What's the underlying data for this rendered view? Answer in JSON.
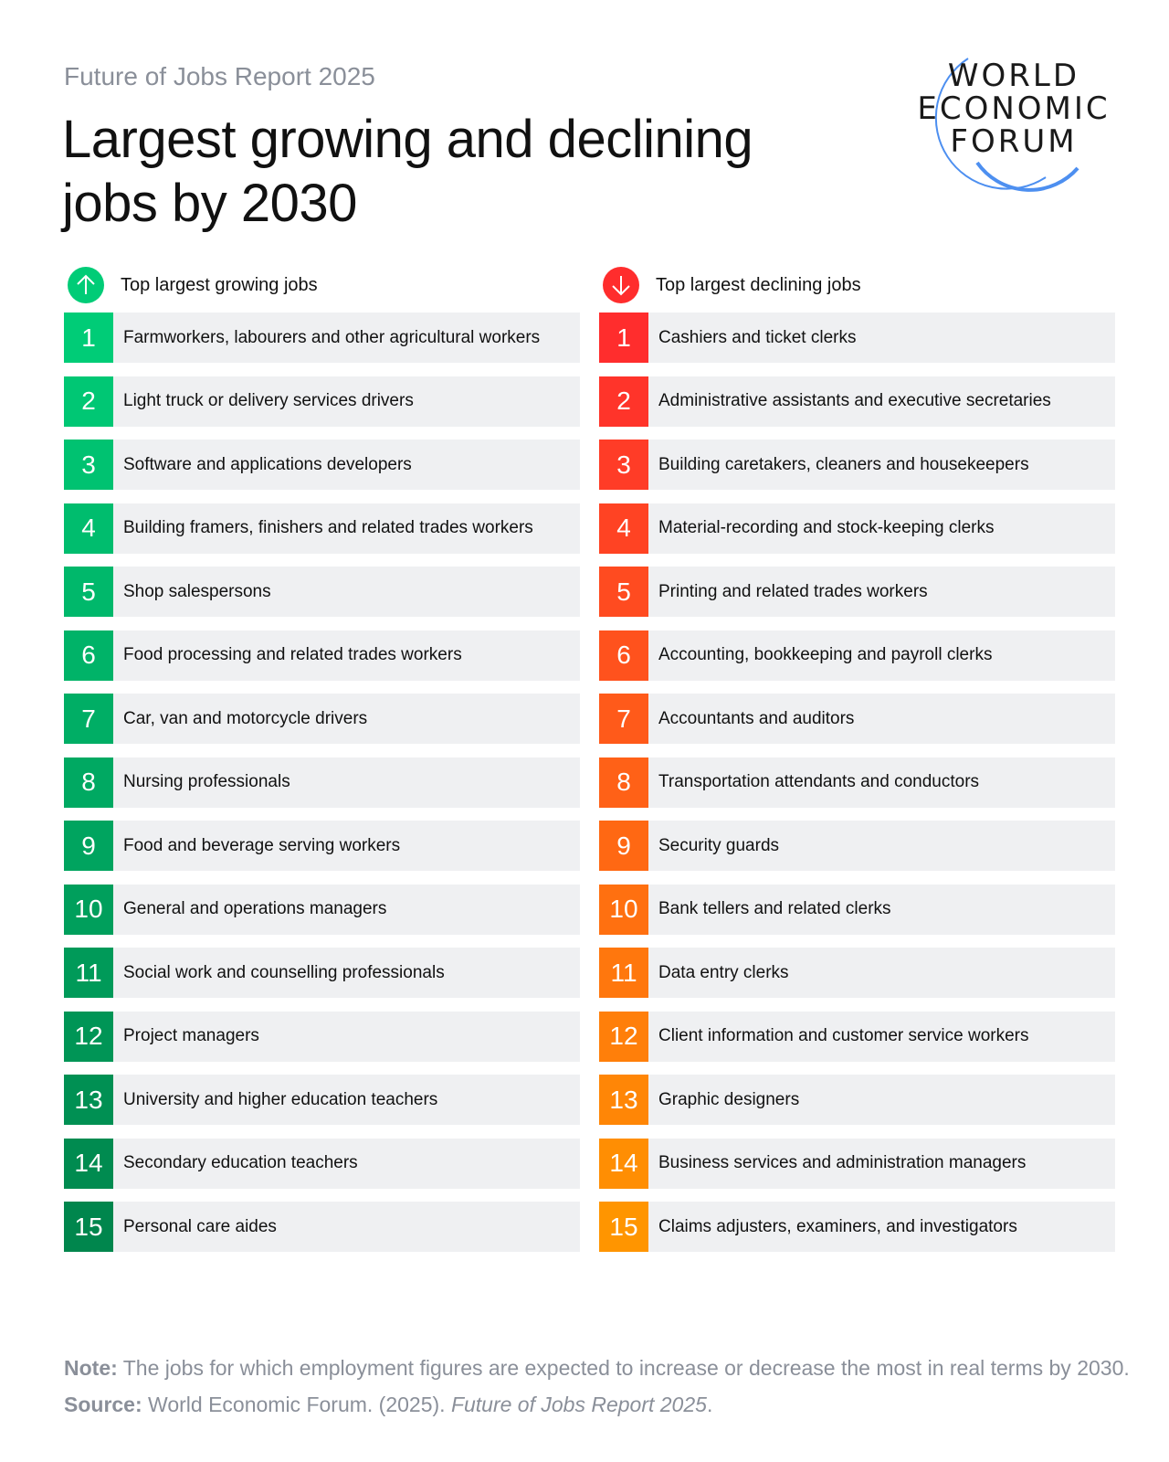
{
  "header": {
    "subtitle": "Future of Jobs Report 2025",
    "title": "Largest growing and declining jobs by 2030",
    "logo_text": "WORLD ECONOMIC FORUM"
  },
  "colors": {
    "growing_start": "#00cc77",
    "growing_end": "#00864d",
    "declining_start": "#ff2d2d",
    "declining_end": "#ff9500",
    "row_bg": "#eff0f2"
  },
  "growing": {
    "heading": "Top largest growing jobs",
    "icon": "arrow-up-icon",
    "items": [
      {
        "rank": "1",
        "label": "Farmworkers, labourers and other agricultural workers"
      },
      {
        "rank": "2",
        "label": "Light truck or delivery services drivers"
      },
      {
        "rank": "3",
        "label": "Software and applications developers"
      },
      {
        "rank": "4",
        "label": "Building framers, finishers and related trades workers"
      },
      {
        "rank": "5",
        "label": "Shop salespersons"
      },
      {
        "rank": "6",
        "label": "Food processing and related trades workers"
      },
      {
        "rank": "7",
        "label": "Car, van and motorcycle drivers"
      },
      {
        "rank": "8",
        "label": "Nursing professionals"
      },
      {
        "rank": "9",
        "label": "Food and beverage serving workers"
      },
      {
        "rank": "10",
        "label": "General and operations managers"
      },
      {
        "rank": "11",
        "label": "Social work and counselling professionals"
      },
      {
        "rank": "12",
        "label": "Project managers"
      },
      {
        "rank": "13",
        "label": "University and higher education teachers"
      },
      {
        "rank": "14",
        "label": "Secondary education teachers"
      },
      {
        "rank": "15",
        "label": "Personal care aides"
      }
    ]
  },
  "declining": {
    "heading": "Top largest declining jobs",
    "icon": "arrow-down-icon",
    "items": [
      {
        "rank": "1",
        "label": "Cashiers and ticket clerks"
      },
      {
        "rank": "2",
        "label": "Administrative assistants and executive secretaries"
      },
      {
        "rank": "3",
        "label": "Building caretakers, cleaners and housekeepers"
      },
      {
        "rank": "4",
        "label": "Material-recording and stock-keeping clerks"
      },
      {
        "rank": "5",
        "label": "Printing and related trades workers"
      },
      {
        "rank": "6",
        "label": "Accounting, bookkeeping and payroll clerks"
      },
      {
        "rank": "7",
        "label": "Accountants and auditors"
      },
      {
        "rank": "8",
        "label": "Transportation attendants and conductors"
      },
      {
        "rank": "9",
        "label": "Security guards"
      },
      {
        "rank": "10",
        "label": "Bank tellers and related clerks"
      },
      {
        "rank": "11",
        "label": "Data entry clerks"
      },
      {
        "rank": "12",
        "label": "Client information and customer service workers"
      },
      {
        "rank": "13",
        "label": "Graphic designers"
      },
      {
        "rank": "14",
        "label": "Business services and administration managers"
      },
      {
        "rank": "15",
        "label": "Claims adjusters, examiners, and investigators"
      }
    ]
  },
  "footer": {
    "note_label": "Note:",
    "note_text": " The jobs for which employment figures are expected to increase or decrease the most in real terms by 2030.",
    "source_label": "Source:",
    "source_text": " World Economic Forum. (2025). ",
    "source_title": "Future of Jobs Report 2025",
    "source_end": "."
  }
}
